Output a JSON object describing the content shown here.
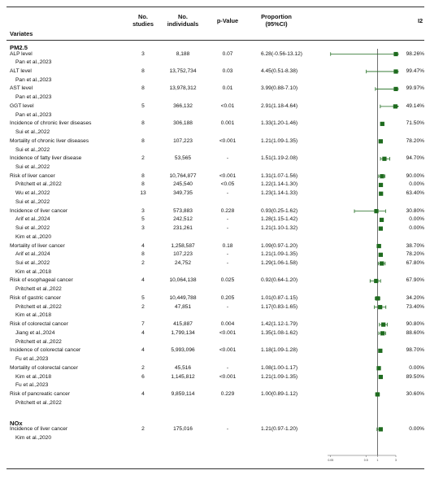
{
  "header": {
    "variates": "Variates",
    "studies": "No.\nstudies",
    "individuals": "No.\nindividuals",
    "pvalue": "p-Value",
    "proportion": "Proportion\n(95%CI)",
    "i2": "I2"
  },
  "groups": [
    {
      "label": "PM2.5",
      "row": 0
    },
    {
      "label": "NOx",
      "row": 48
    }
  ],
  "rows": [
    {
      "name": "ALP level",
      "studies": "3",
      "n": "8,188",
      "p": "0.07",
      "ci": "6.28(-0.56-13.12)",
      "i2": "98.26%"
    },
    {
      "name": "Pan et al.,2023",
      "studies": "",
      "n": "",
      "p": "",
      "ci": "",
      "i2": "",
      "sub": true
    },
    {
      "name": "ALT level",
      "studies": "8",
      "n": "13,752,734",
      "p": "0.03",
      "ci": "4.45(0.51-8.38)",
      "i2": "99.47%"
    },
    {
      "name": "Pan et al.,2023",
      "studies": "",
      "n": "",
      "p": "",
      "ci": "",
      "i2": "",
      "sub": true
    },
    {
      "name": "AST level",
      "studies": "8",
      "n": "13,978,312",
      "p": "0.01",
      "ci": "3.99(0.88-7.10)",
      "i2": "99.97%"
    },
    {
      "name": "Pan et al.,2023",
      "studies": "",
      "n": "",
      "p": "",
      "ci": "",
      "i2": "",
      "sub": true
    },
    {
      "name": "GGT level",
      "studies": "5",
      "n": "366,132",
      "p": "<0.01",
      "ci": "2.91(1.18-4.64)",
      "i2": "49.14%"
    },
    {
      "name": "Pan et al.,2023",
      "studies": "",
      "n": "",
      "p": "",
      "ci": "",
      "i2": "",
      "sub": true
    },
    {
      "name": "Incidence of chronic liver diseases",
      "studies": "8",
      "n": "306,188",
      "p": "0.001",
      "ci": "1.33(1.20-1.46)",
      "i2": "71.50%"
    },
    {
      "name": "Sui et al.,2022",
      "studies": "",
      "n": "",
      "p": "",
      "ci": "",
      "i2": "",
      "sub": true
    },
    {
      "name": "Mortality of chronic liver diseases",
      "studies": "8",
      "n": "107,223",
      "p": "<0.001",
      "ci": "1.21(1.09-1.35)",
      "i2": "78.20%"
    },
    {
      "name": "Sui et al.,2022",
      "studies": "",
      "n": "",
      "p": "",
      "ci": "",
      "i2": "",
      "sub": true
    },
    {
      "name": "Incidence of fatty liver disease",
      "studies": "2",
      "n": "53,565",
      "p": "-",
      "ci": "1.51(1.19-2.08)",
      "i2": "94.70%"
    },
    {
      "name": "Sui et al.,2022",
      "studies": "",
      "n": "",
      "p": "",
      "ci": "",
      "i2": "",
      "sub": true
    },
    {
      "name": "Risk of liver cancer",
      "studies": "8",
      "n": "10,764,877",
      "p": "<0.001",
      "ci": "1.31(1.07-1.56)",
      "i2": "90.00%"
    },
    {
      "name": "Pritchett et al.,2022",
      "studies": "8",
      "n": "245,540",
      "p": "<0.05",
      "ci": "1.22(1.14-1.30)",
      "i2": "0.00%",
      "sub": true
    },
    {
      "name": "Wu et al.,2022",
      "studies": "13",
      "n": "349,735",
      "p": "-",
      "ci": "1.23(1.14-1.33)",
      "i2": "63.40%",
      "sub": true
    },
    {
      "name": "Sui et al.,2022",
      "studies": "",
      "n": "",
      "p": "",
      "ci": "",
      "i2": "",
      "sub": true
    },
    {
      "name": "Incidence of liver cancer",
      "studies": "3",
      "n": "573,883",
      "p": "0.228",
      "ci": "0.93(0.25-1.62)",
      "i2": "30.80%"
    },
    {
      "name": "Arif et al.,2024",
      "studies": "5",
      "n": "242,512",
      "p": "-",
      "ci": "1.28(1.15-1.42)",
      "i2": "0.00%",
      "sub": true
    },
    {
      "name": "Sui et al.,2022",
      "studies": "3",
      "n": "231,261",
      "p": "-",
      "ci": "1.21(1.10-1.32)",
      "i2": "0.00%",
      "sub": true
    },
    {
      "name": "Kim et al.,2020",
      "studies": "",
      "n": "",
      "p": "",
      "ci": "",
      "i2": "",
      "sub": true
    },
    {
      "name": "Mortality of liver cancer",
      "studies": "4",
      "n": "1,258,587",
      "p": "0.18",
      "ci": "1.09(0.97-1.20)",
      "i2": "38.70%"
    },
    {
      "name": "Arif et al.,2024",
      "studies": "8",
      "n": "107,223",
      "p": "-",
      "ci": "1.21(1.09-1.35)",
      "i2": "78.20%",
      "sub": true
    },
    {
      "name": "Sui et al.,2022",
      "studies": "2",
      "n": "24,752",
      "p": "-",
      "ci": "1.29(1.06-1.58)",
      "i2": "67.80%",
      "sub": true
    },
    {
      "name": "Kim et al.,2018",
      "studies": "",
      "n": "",
      "p": "",
      "ci": "",
      "i2": "",
      "sub": true
    },
    {
      "name": "Risk of esophageal cancer",
      "studies": "4",
      "n": "10,064,138",
      "p": "0.025",
      "ci": "0.92(0.64-1.20)",
      "i2": "67.90%"
    },
    {
      "name": "Pritchett et al.,2022",
      "studies": "",
      "n": "",
      "p": "",
      "ci": "",
      "i2": "",
      "sub": true
    },
    {
      "name": "Risk of gastric cancer",
      "studies": "5",
      "n": "10,449,788",
      "p": "0.205",
      "ci": "1.01(0.87-1.15)",
      "i2": "34.20%"
    },
    {
      "name": "Pritchett et al.,2022",
      "studies": "2",
      "n": "47,851",
      "p": "-",
      "ci": "1.17(0.83-1.65)",
      "i2": "73.40%",
      "sub": true
    },
    {
      "name": "Kim et al.,2018",
      "studies": "",
      "n": "",
      "p": "",
      "ci": "",
      "i2": "",
      "sub": true
    },
    {
      "name": "Risk of colorectal cancer",
      "studies": "7",
      "n": "415,887",
      "p": "0.004",
      "ci": "1.42(1.12-1.79)",
      "i2": "90.80%"
    },
    {
      "name": "Jiang et al.,2024",
      "studies": "4",
      "n": "1,799,134",
      "p": "<0.001",
      "ci": "1.35(1.08-1.62)",
      "i2": "88.60%",
      "sub": true
    },
    {
      "name": "Pritchett et al.,2022",
      "studies": "",
      "n": "",
      "p": "",
      "ci": "",
      "i2": "",
      "sub": true
    },
    {
      "name": "Incidence of colorectal cancer",
      "studies": "4",
      "n": "5,993,096",
      "p": "<0.001",
      "ci": "1.18(1.09-1.28)",
      "i2": "98.70%"
    },
    {
      "name": "Fu et al.,2023",
      "studies": "",
      "n": "",
      "p": "",
      "ci": "",
      "i2": "",
      "sub": true
    },
    {
      "name": "Mortality of colorectal cancer",
      "studies": "2",
      "n": "45,516",
      "p": "-",
      "ci": "1.08(1.00-1.17)",
      "i2": "0.00%"
    },
    {
      "name": "Kim et al.,2018",
      "studies": "6",
      "n": "1,145,812",
      "p": "<0.001",
      "ci": "1.21(1.09-1.35)",
      "i2": "89.50%",
      "sub": true
    },
    {
      "name": "Fu et al.,2023",
      "studies": "",
      "n": "",
      "p": "",
      "ci": "",
      "i2": "",
      "sub": true
    },
    {
      "name": "Risk of pancreatic cancer",
      "studies": "4",
      "n": "9,859,114",
      "p": "0.229",
      "ci": "1.00(0.89-1.12)",
      "i2": "30.60%"
    },
    {
      "name": "Pritchett et al.,2022",
      "studies": "",
      "n": "",
      "p": "",
      "ci": "",
      "i2": "",
      "sub": true
    },
    {
      "name": "Incidence of liver cancer",
      "studies": "2",
      "n": "175,016",
      "p": "-",
      "ci": "1.21(0.97-1.20)",
      "i2": "0.00%"
    },
    {
      "name": "Kim et al.,2020",
      "studies": "",
      "n": "",
      "p": "",
      "ci": "",
      "i2": "",
      "sub": true
    }
  ],
  "chart_data": {
    "type": "scatter",
    "title": "",
    "xlabel": "",
    "reference_line": 1,
    "x_ticks": [
      "0.05",
      "0.5",
      "1",
      "3"
    ],
    "xlim": [
      0.05,
      3
    ],
    "scale": "log",
    "marker_color": "#1e6b1e",
    "points": [
      {
        "row": 0,
        "est": 6.28,
        "lo": -0.56,
        "hi": 13.12
      },
      {
        "row": 2,
        "est": 4.45,
        "lo": 0.51,
        "hi": 8.38
      },
      {
        "row": 4,
        "est": 3.99,
        "lo": 0.88,
        "hi": 7.1
      },
      {
        "row": 6,
        "est": 2.91,
        "lo": 1.18,
        "hi": 4.64
      },
      {
        "row": 8,
        "est": 1.33,
        "lo": 1.2,
        "hi": 1.46
      },
      {
        "row": 10,
        "est": 1.21,
        "lo": 1.09,
        "hi": 1.35
      },
      {
        "row": 12,
        "est": 1.51,
        "lo": 1.19,
        "hi": 2.08
      },
      {
        "row": 14,
        "est": 1.31,
        "lo": 1.07,
        "hi": 1.56
      },
      {
        "row": 15,
        "est": 1.22,
        "lo": 1.14,
        "hi": 1.3
      },
      {
        "row": 16,
        "est": 1.23,
        "lo": 1.14,
        "hi": 1.33
      },
      {
        "row": 18,
        "est": 0.93,
        "lo": 0.25,
        "hi": 1.62
      },
      {
        "row": 19,
        "est": 1.28,
        "lo": 1.15,
        "hi": 1.42
      },
      {
        "row": 20,
        "est": 1.21,
        "lo": 1.1,
        "hi": 1.32
      },
      {
        "row": 22,
        "est": 1.09,
        "lo": 0.97,
        "hi": 1.2
      },
      {
        "row": 23,
        "est": 1.21,
        "lo": 1.09,
        "hi": 1.35
      },
      {
        "row": 24,
        "est": 1.29,
        "lo": 1.06,
        "hi": 1.58
      },
      {
        "row": 26,
        "est": 0.92,
        "lo": 0.64,
        "hi": 1.2
      },
      {
        "row": 28,
        "est": 1.01,
        "lo": 0.87,
        "hi": 1.15
      },
      {
        "row": 29,
        "est": 1.17,
        "lo": 0.83,
        "hi": 1.65
      },
      {
        "row": 31,
        "est": 1.42,
        "lo": 1.12,
        "hi": 1.79
      },
      {
        "row": 32,
        "est": 1.35,
        "lo": 1.08,
        "hi": 1.62
      },
      {
        "row": 34,
        "est": 1.18,
        "lo": 1.09,
        "hi": 1.28
      },
      {
        "row": 36,
        "est": 1.08,
        "lo": 1.0,
        "hi": 1.17
      },
      {
        "row": 37,
        "est": 1.21,
        "lo": 1.09,
        "hi": 1.35
      },
      {
        "row": 39,
        "est": 1.0,
        "lo": 0.89,
        "hi": 1.12
      },
      {
        "row": 41,
        "est": 1.21,
        "lo": 0.97,
        "hi": 1.2
      }
    ]
  }
}
